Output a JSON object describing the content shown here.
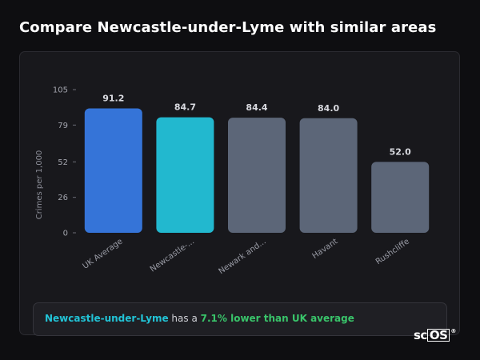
{
  "page": {
    "title": "Compare Newcastle-under-Lyme with similar areas"
  },
  "chart_data": {
    "type": "bar",
    "ylabel": "Crimes per 1,000",
    "ylim": [
      0,
      105
    ],
    "yticks": [
      0,
      26,
      52,
      79,
      105
    ],
    "grid": false,
    "categories": [
      "UK Average",
      "Newcastle-...",
      "Newark and...",
      "Havant",
      "Rushcliffe"
    ],
    "values": [
      91.2,
      84.7,
      84.4,
      84.0,
      52.0
    ],
    "value_labels": [
      "91.2",
      "84.7",
      "84.4",
      "84.0",
      "52.0"
    ],
    "bar_colors": [
      "#3574d8",
      "#22b8cf",
      "#5c6678",
      "#5c6678",
      "#5c6678"
    ]
  },
  "callout": {
    "area": "Newcastle-under-Lyme",
    "text_mid": " has a ",
    "delta": "7.1% lower than UK average"
  },
  "brand": {
    "prefix": "sc",
    "boxed": "OS",
    "mark": "®"
  },
  "colors": {
    "background": "#0e0e11",
    "card": "#18181c",
    "highlight_area": "#22c3d6",
    "good": "#39c46a"
  }
}
